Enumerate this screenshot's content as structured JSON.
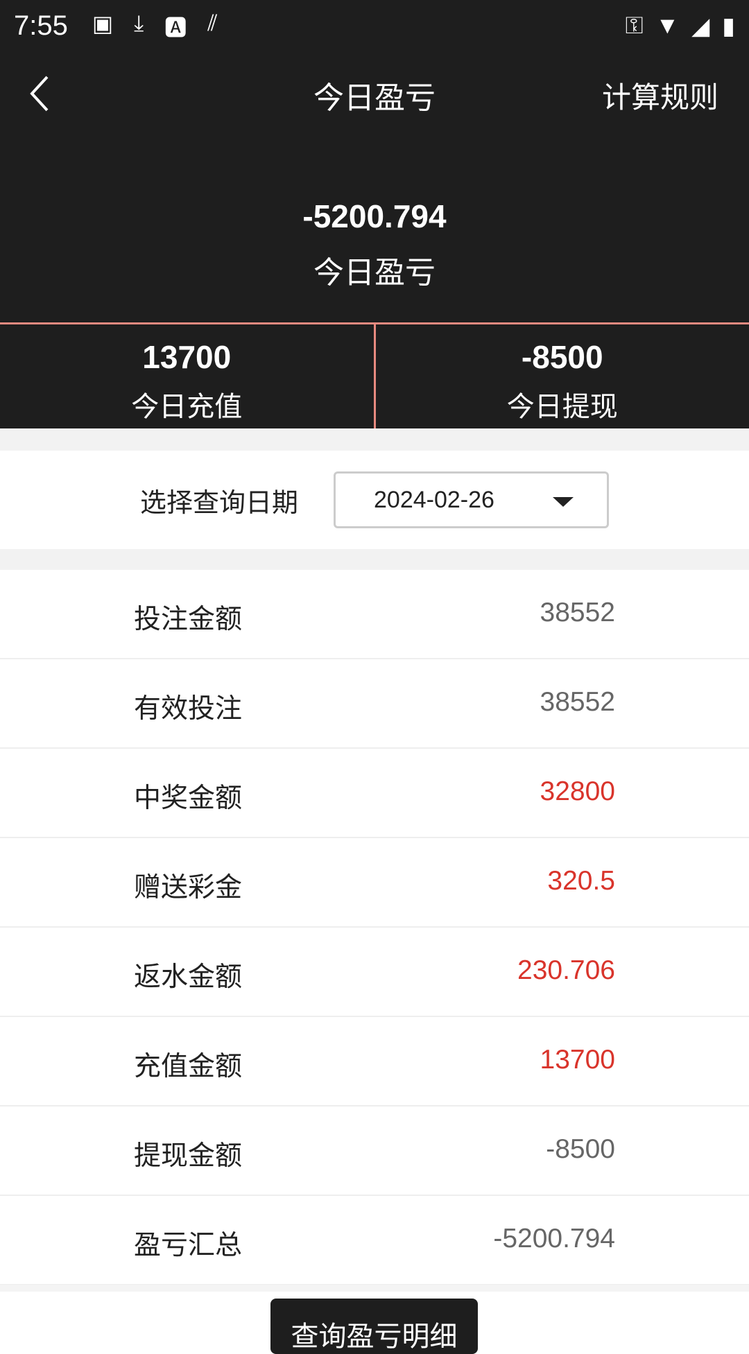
{
  "status_bar": {
    "time": "7:55",
    "icons": [
      "image-icon",
      "download-icon",
      "font-icon",
      "signal-pattern-icon"
    ],
    "right_icons": [
      "key-icon",
      "wifi-icon",
      "cell-signal-icon",
      "battery-charging-icon"
    ]
  },
  "nav": {
    "title": "今日盈亏",
    "rules_label": "计算规则"
  },
  "hero": {
    "value": "-5200.794",
    "label": "今日盈亏"
  },
  "stats": [
    {
      "value": "13700",
      "label": "今日充值"
    },
    {
      "value": "-8500",
      "label": "今日提现"
    }
  ],
  "date": {
    "label": "选择查询日期",
    "value": "2024-02-26"
  },
  "colors": {
    "header": "#1e1e1e",
    "divider": "#e88a80",
    "positive": "#d9342b",
    "neutral": "#666666"
  },
  "rows": [
    {
      "label": "投注金额",
      "value": "38552",
      "highlight": false
    },
    {
      "label": "有效投注",
      "value": "38552",
      "highlight": false
    },
    {
      "label": "中奖金额",
      "value": "32800",
      "highlight": true
    },
    {
      "label": "赠送彩金",
      "value": "320.5",
      "highlight": true
    },
    {
      "label": "返水金额",
      "value": "230.706",
      "highlight": true
    },
    {
      "label": "充值金额",
      "value": "13700",
      "highlight": true
    },
    {
      "label": "提现金额",
      "value": "-8500",
      "highlight": false
    },
    {
      "label": "盈亏汇总",
      "value": "-5200.794",
      "highlight": false
    }
  ],
  "button_label": "查询盈亏明细"
}
